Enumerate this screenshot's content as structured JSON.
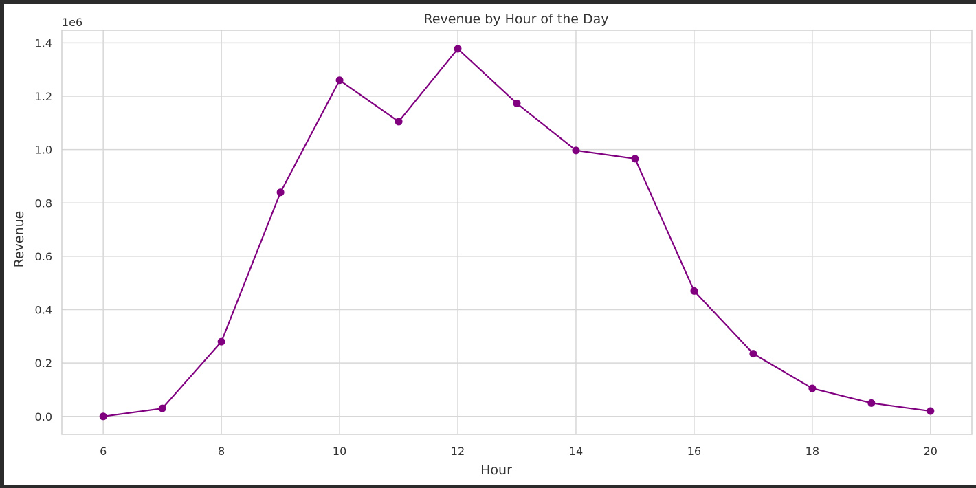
{
  "chart_data": {
    "type": "line",
    "title": "Revenue by Hour of the Day",
    "xlabel": "Hour",
    "ylabel": "Revenue",
    "y_scale_label": "1e6",
    "xlim": [
      5.3,
      20.7
    ],
    "ylim": [
      -0.0675,
      1.4475
    ],
    "xticks": [
      6,
      8,
      10,
      12,
      14,
      16,
      18,
      20
    ],
    "yticks": [
      0.0,
      0.2,
      0.4,
      0.6,
      0.8,
      1.0,
      1.2,
      1.4
    ],
    "ytick_labels": [
      "0.0",
      "0.2",
      "0.4",
      "0.6",
      "0.8",
      "1.0",
      "1.2",
      "1.4"
    ],
    "grid": true,
    "series": [
      {
        "name": "Revenue",
        "color": "#800080",
        "marker": "circle",
        "x": [
          6,
          7,
          8,
          9,
          10,
          11,
          12,
          13,
          14,
          15,
          16,
          17,
          18,
          19,
          20
        ],
        "y": [
          0.0,
          0.03,
          0.28,
          0.84,
          1.26,
          1.105,
          1.378,
          1.173,
          0.997,
          0.966,
          0.47,
          0.235,
          0.105,
          0.05,
          0.02
        ]
      }
    ]
  }
}
